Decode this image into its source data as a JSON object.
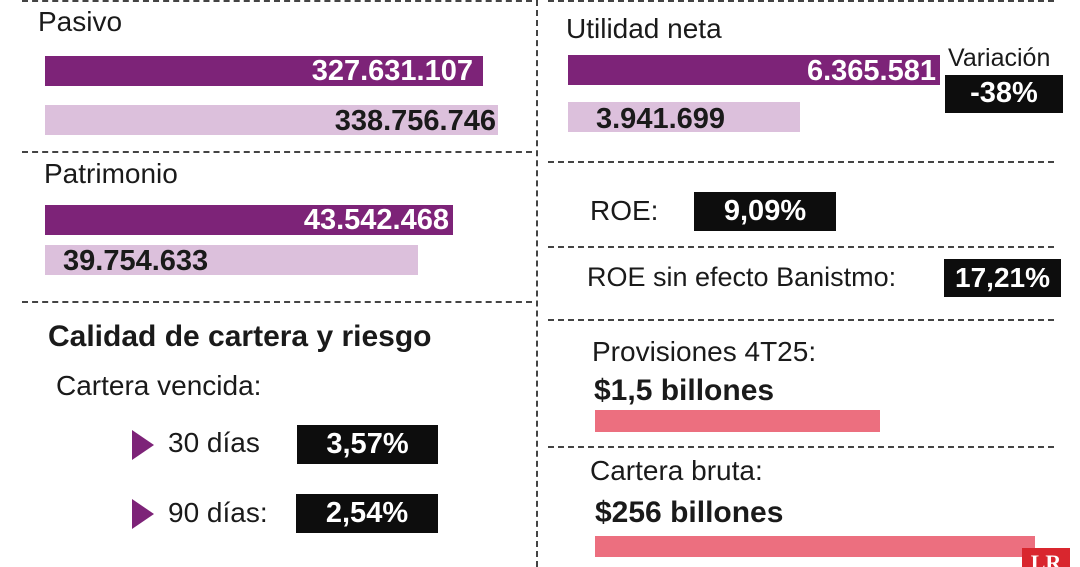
{
  "colors": {
    "bar_dark": "#7d2378",
    "bar_light": "#dcc0dc",
    "bar_pink": "#ec6f7f",
    "box": "#0d0d0d"
  },
  "pasivo": {
    "label": "Pasivo",
    "value_1": "327.631.107",
    "value_2": "338.756.746"
  },
  "patrimonio": {
    "label": "Patrimonio",
    "value_1": "43.542.468",
    "value_2": "39.754.633"
  },
  "utilidad": {
    "label": "Utilidad neta",
    "value_1": "6.365.581",
    "value_2": "3.941.699",
    "variation_label": "Variación",
    "variation_value": "-38%"
  },
  "roe": {
    "label": "ROE:",
    "value": "9,09%"
  },
  "roe_sin": {
    "label": "ROE sin efecto Banistmo:",
    "value": "17,21%"
  },
  "calidad": {
    "title": "Calidad de cartera y riesgo",
    "subtitle": "Cartera vencida:",
    "items": [
      {
        "label": "30 días",
        "value": "3,57%"
      },
      {
        "label": "90 días:",
        "value": "2,54%"
      }
    ]
  },
  "provisiones": {
    "label": "Provisiones 4T25:",
    "value": "$1,5 billones"
  },
  "cartera_bruta": {
    "label": "Cartera bruta:",
    "value": "$256 billones"
  },
  "logo_text": "LR",
  "chart_data": [
    {
      "type": "bar",
      "title": "Pasivo",
      "values": [
        327631107,
        338756746
      ],
      "labels": [
        "327.631.107",
        "338.756.746"
      ]
    },
    {
      "type": "bar",
      "title": "Patrimonio",
      "values": [
        43542468,
        39754633
      ],
      "labels": [
        "43.542.468",
        "39.754.633"
      ]
    },
    {
      "type": "bar",
      "title": "Utilidad neta",
      "values": [
        6365581,
        3941699
      ],
      "labels": [
        "6.365.581",
        "3.941.699"
      ]
    }
  ]
}
